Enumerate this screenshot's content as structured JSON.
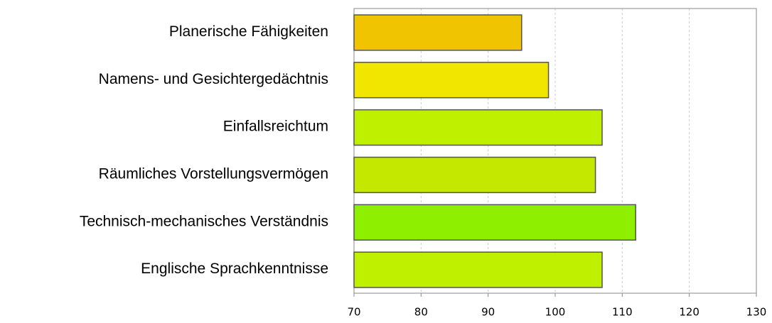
{
  "chart_data": {
    "type": "bar",
    "orientation": "horizontal",
    "categories": [
      "Planerische Fähigkeiten",
      "Namens- und Gesichtergedächtnis",
      "Einfallsreichtum",
      "Räumliches Vorstellungsvermögen",
      "Technisch-mechanisches Verständnis",
      "Englische Sprachkenntnisse"
    ],
    "values": [
      95,
      99,
      107,
      106,
      112,
      107
    ],
    "colors": [
      "#f0c400",
      "#f0e600",
      "#bff000",
      "#c4e800",
      "#8ef000",
      "#bff000"
    ],
    "xlim": [
      70,
      130
    ],
    "xticks": [
      70,
      80,
      90,
      100,
      110,
      120,
      130
    ],
    "grid": true
  }
}
